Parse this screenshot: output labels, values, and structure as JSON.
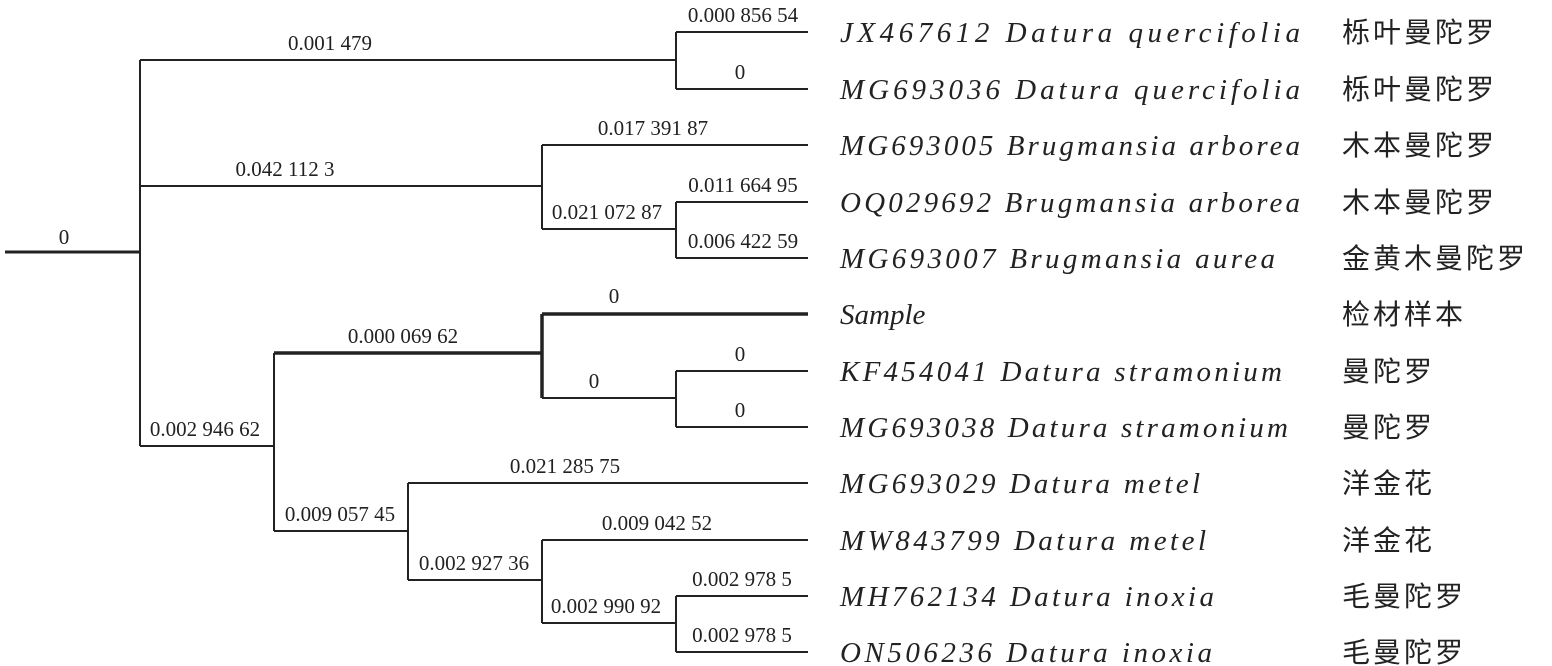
{
  "tree": {
    "root_branch_label": "0",
    "branches": [
      {
        "id": "b1",
        "label": "0.001 479"
      },
      {
        "id": "b2",
        "label": "0.000 856 54"
      },
      {
        "id": "b3",
        "label": "0"
      },
      {
        "id": "b4",
        "label": "0.042 112 3"
      },
      {
        "id": "b5",
        "label": "0.017 391 87"
      },
      {
        "id": "b6",
        "label": "0.021 072 87"
      },
      {
        "id": "b7",
        "label": "0.011 664 95"
      },
      {
        "id": "b8",
        "label": "0.006 422 59"
      },
      {
        "id": "b9",
        "label": "0.002 946 62"
      },
      {
        "id": "b10",
        "label": "0.000 069 62"
      },
      {
        "id": "b11",
        "label": "0"
      },
      {
        "id": "b12",
        "label": "0"
      },
      {
        "id": "b13",
        "label": "0"
      },
      {
        "id": "b14",
        "label": "0"
      },
      {
        "id": "b15",
        "label": "0.009 057 45"
      },
      {
        "id": "b16",
        "label": "0.021 285 75"
      },
      {
        "id": "b17",
        "label": "0.002 927 36"
      },
      {
        "id": "b18",
        "label": "0.009 042 52"
      },
      {
        "id": "b19",
        "label": "0.002 990 92"
      },
      {
        "id": "b20",
        "label": "0.002 978 5"
      },
      {
        "id": "b21",
        "label": "0.002 978 5"
      }
    ],
    "leaves": [
      {
        "accession": "JX467612",
        "species": "Datura quercifolia",
        "chinese": "栎叶曼陀罗"
      },
      {
        "accession": "MG693036",
        "species": "Datura quercifolia",
        "chinese": "栎叶曼陀罗"
      },
      {
        "accession": "MG693005",
        "species": "Brugmansia arborea",
        "chinese": "木本曼陀罗"
      },
      {
        "accession": "OQ029692",
        "species": "Brugmansia arborea",
        "chinese": "木本曼陀罗"
      },
      {
        "accession": "MG693007",
        "species": "Brugmansia aurea",
        "chinese": "金黄木曼陀罗"
      },
      {
        "accession": "",
        "species": "Sample",
        "chinese": "检材样本"
      },
      {
        "accession": "KF454041",
        "species": "Datura stramonium",
        "chinese": "曼陀罗"
      },
      {
        "accession": "MG693038",
        "species": "Datura stramonium",
        "chinese": "曼陀罗"
      },
      {
        "accession": "MG693029",
        "species": "Datura metel",
        "chinese": "洋金花"
      },
      {
        "accession": "MW843799",
        "species": "Datura metel",
        "chinese": "洋金花"
      },
      {
        "accession": "MH762134",
        "species": "Datura inoxia",
        "chinese": "毛曼陀罗"
      },
      {
        "accession": "ON506236",
        "species": "Datura inoxia",
        "chinese": "毛曼陀罗"
      }
    ],
    "line_color": "#222222",
    "highlight_clade": "Sample"
  }
}
